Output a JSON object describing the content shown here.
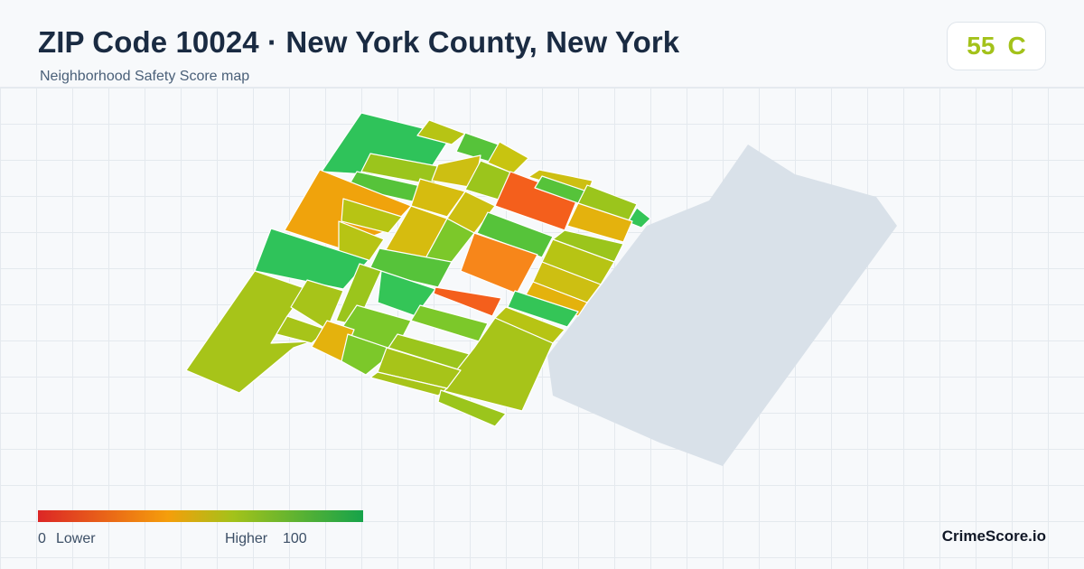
{
  "header": {
    "title": "ZIP Code 10024 · New York County, New York",
    "subtitle": "Neighborhood Safety Score map"
  },
  "score": {
    "value": "55",
    "grade": "C",
    "color": "#a3c21a"
  },
  "legend": {
    "low_value": "0",
    "low_label": "Lower",
    "high_label": "Higher",
    "high_value": "100",
    "colors": [
      "#dc2626",
      "#f59e0b",
      "#a3c21a",
      "#16a34a"
    ]
  },
  "map": {
    "park_color": "#d9e1e9",
    "tract_colors": [
      "#2fc35a",
      "#b7c414",
      "#56c33a",
      "#c8c410",
      "#cdbf12",
      "#f0a30c",
      "#9bc51c",
      "#7cc82a",
      "#f45f1c",
      "#d6bc0f",
      "#e4b20d",
      "#34c557",
      "#f7861a",
      "#a7c419",
      "#8bc726"
    ]
  },
  "brand": "CrimeScore.io"
}
